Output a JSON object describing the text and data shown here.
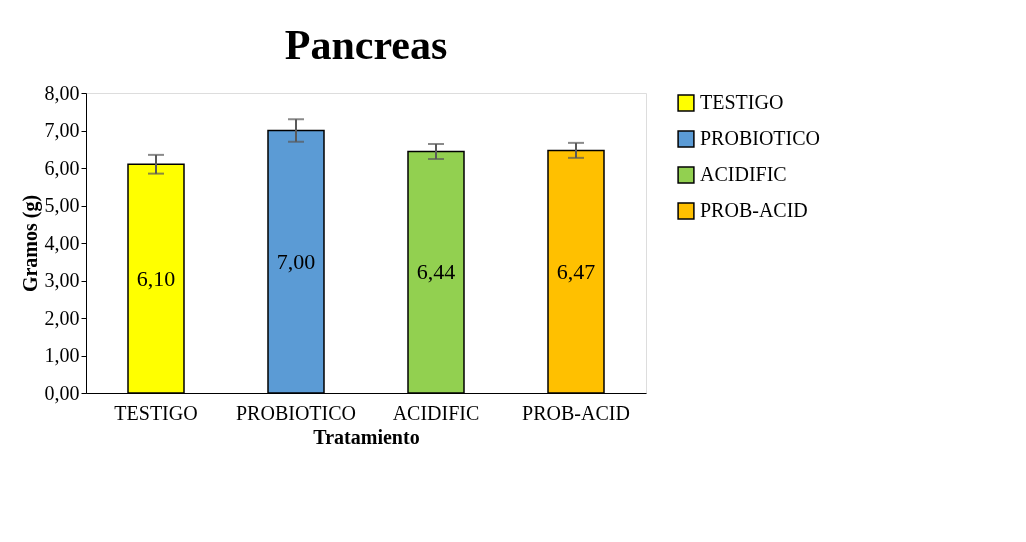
{
  "chart_data": {
    "type": "bar",
    "title": "Pancreas",
    "xlabel": "Tratamiento",
    "ylabel": "Gramos (g)",
    "categories": [
      "TESTIGO",
      "PROBIOTICO",
      "ACIDIFIC",
      "PROB-ACID"
    ],
    "series": [
      {
        "name": "TESTIGO",
        "color": "#ffff00",
        "values": [
          6.1,
          null,
          null,
          null
        ],
        "errors": [
          0.25,
          null,
          null,
          null
        ],
        "value_labels": [
          "6,10",
          null,
          null,
          null
        ]
      },
      {
        "name": "PROBIOTICO",
        "color": "#5b9bd5",
        "values": [
          null,
          7.0,
          null,
          null
        ],
        "errors": [
          null,
          0.3,
          null,
          null
        ],
        "value_labels": [
          null,
          "7,00",
          null,
          null
        ]
      },
      {
        "name": "ACIDIFIC",
        "color": "#92d050",
        "values": [
          null,
          null,
          6.44,
          null
        ],
        "errors": [
          null,
          null,
          0.2,
          null
        ],
        "value_labels": [
          null,
          null,
          "6,44",
          null
        ]
      },
      {
        "name": "PROB-ACID",
        "color": "#ffc000",
        "values": [
          null,
          null,
          null,
          6.47
        ],
        "errors": [
          null,
          null,
          null,
          0.2
        ],
        "value_labels": [
          null,
          null,
          null,
          "6,47"
        ]
      }
    ],
    "ylim": [
      0,
      8
    ],
    "yticks": [
      {
        "value": 0,
        "label": "0,00"
      },
      {
        "value": 1,
        "label": "1,00"
      },
      {
        "value": 2,
        "label": "2,00"
      },
      {
        "value": 3,
        "label": "3,00"
      },
      {
        "value": 4,
        "label": "4,00"
      },
      {
        "value": 5,
        "label": "5,00"
      },
      {
        "value": 6,
        "label": "6,00"
      },
      {
        "value": 7,
        "label": "7,00"
      },
      {
        "value": 8,
        "label": "8,00"
      }
    ],
    "grid": false,
    "legend": "right"
  }
}
